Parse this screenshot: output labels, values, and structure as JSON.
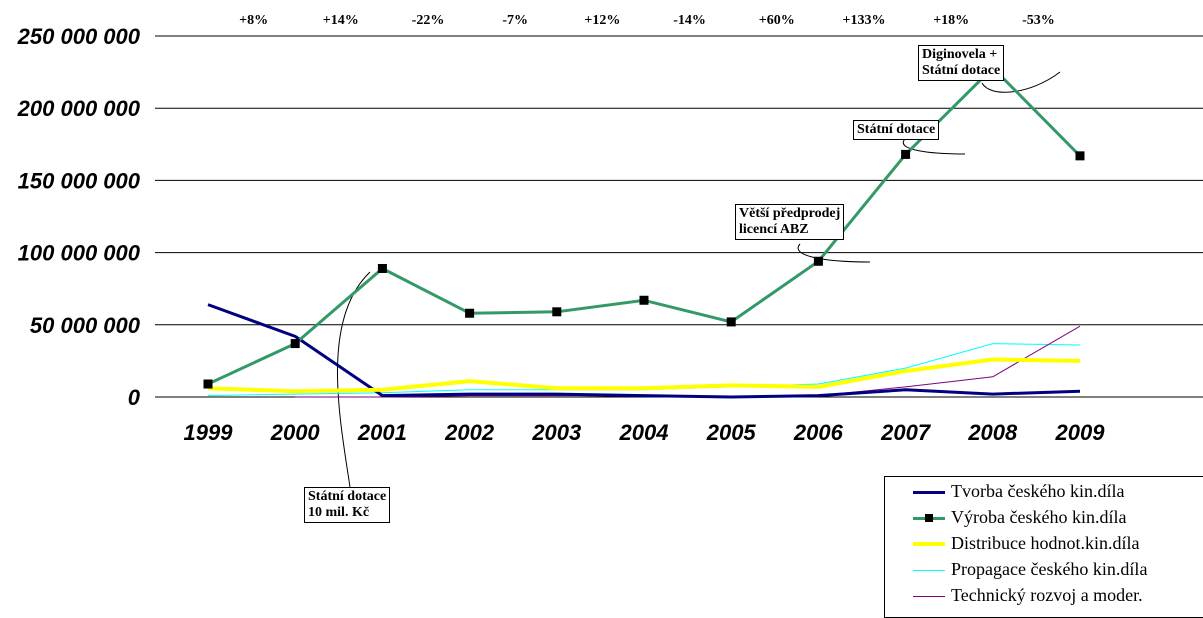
{
  "chart_data": {
    "type": "line",
    "title": "",
    "xlabel": "",
    "ylabel": "",
    "x": [
      "1999",
      "2000",
      "2001",
      "2002",
      "2003",
      "2004",
      "2005",
      "2006",
      "2007",
      "2008",
      "2009"
    ],
    "ylim": [
      0,
      250000000
    ],
    "y_ticks": [
      "0",
      "50 000 000",
      "100 000 000",
      "150 000 000",
      "200 000 000",
      "250 000 000"
    ],
    "grid": "horizontal",
    "growth_labels": [
      "+8%",
      "+14%",
      "-22%",
      "-7%",
      "+12%",
      "-14%",
      "+60%",
      "+133%",
      "+18%",
      "-53%"
    ],
    "series": [
      {
        "name": "Tvorba českého kin.díla",
        "color": "#000080",
        "width": 3,
        "marker": "none",
        "values": [
          64000000,
          42000000,
          1000000,
          2000000,
          2000000,
          1000000,
          0,
          1000000,
          5000000,
          2000000,
          4000000
        ]
      },
      {
        "name": "Výroba českého kin.díla",
        "color": "#339966",
        "width": 3,
        "marker": "square",
        "values": [
          9000000,
          37000000,
          89000000,
          58000000,
          59000000,
          67000000,
          52000000,
          94000000,
          168000000,
          228000000,
          167000000
        ]
      },
      {
        "name": "Distribuce hodnot.kin.díla",
        "color": "#ffff00",
        "width": 4,
        "marker": "none",
        "values": [
          6000000,
          4000000,
          5000000,
          11000000,
          6000000,
          6000000,
          8000000,
          7000000,
          18000000,
          26000000,
          25000000
        ]
      },
      {
        "name": "Propagace českého kin.díla",
        "color": "#00ffff",
        "width": 1,
        "marker": "none",
        "values": [
          1000000,
          2000000,
          3000000,
          5000000,
          5000000,
          5000000,
          7000000,
          9000000,
          20000000,
          37000000,
          36000000
        ]
      },
      {
        "name": "Technický rozvoj a moder.",
        "color": "#800080",
        "width": 1,
        "marker": "none",
        "values": [
          null,
          0,
          0,
          1000000,
          1000000,
          1000000,
          0,
          1000000,
          7000000,
          14000000,
          49000000
        ]
      }
    ],
    "annotations": [
      {
        "text": "Státní dotace\n10 mil. Kč",
        "year": "2001"
      },
      {
        "text": "Větší předprodej\nlicencí ABZ",
        "year": "2006"
      },
      {
        "text": "Státní dotace",
        "year": "2007"
      },
      {
        "text": "Diginovela +\nStátní dotace",
        "year": "2008"
      }
    ],
    "legend_position": "bottom-right"
  }
}
